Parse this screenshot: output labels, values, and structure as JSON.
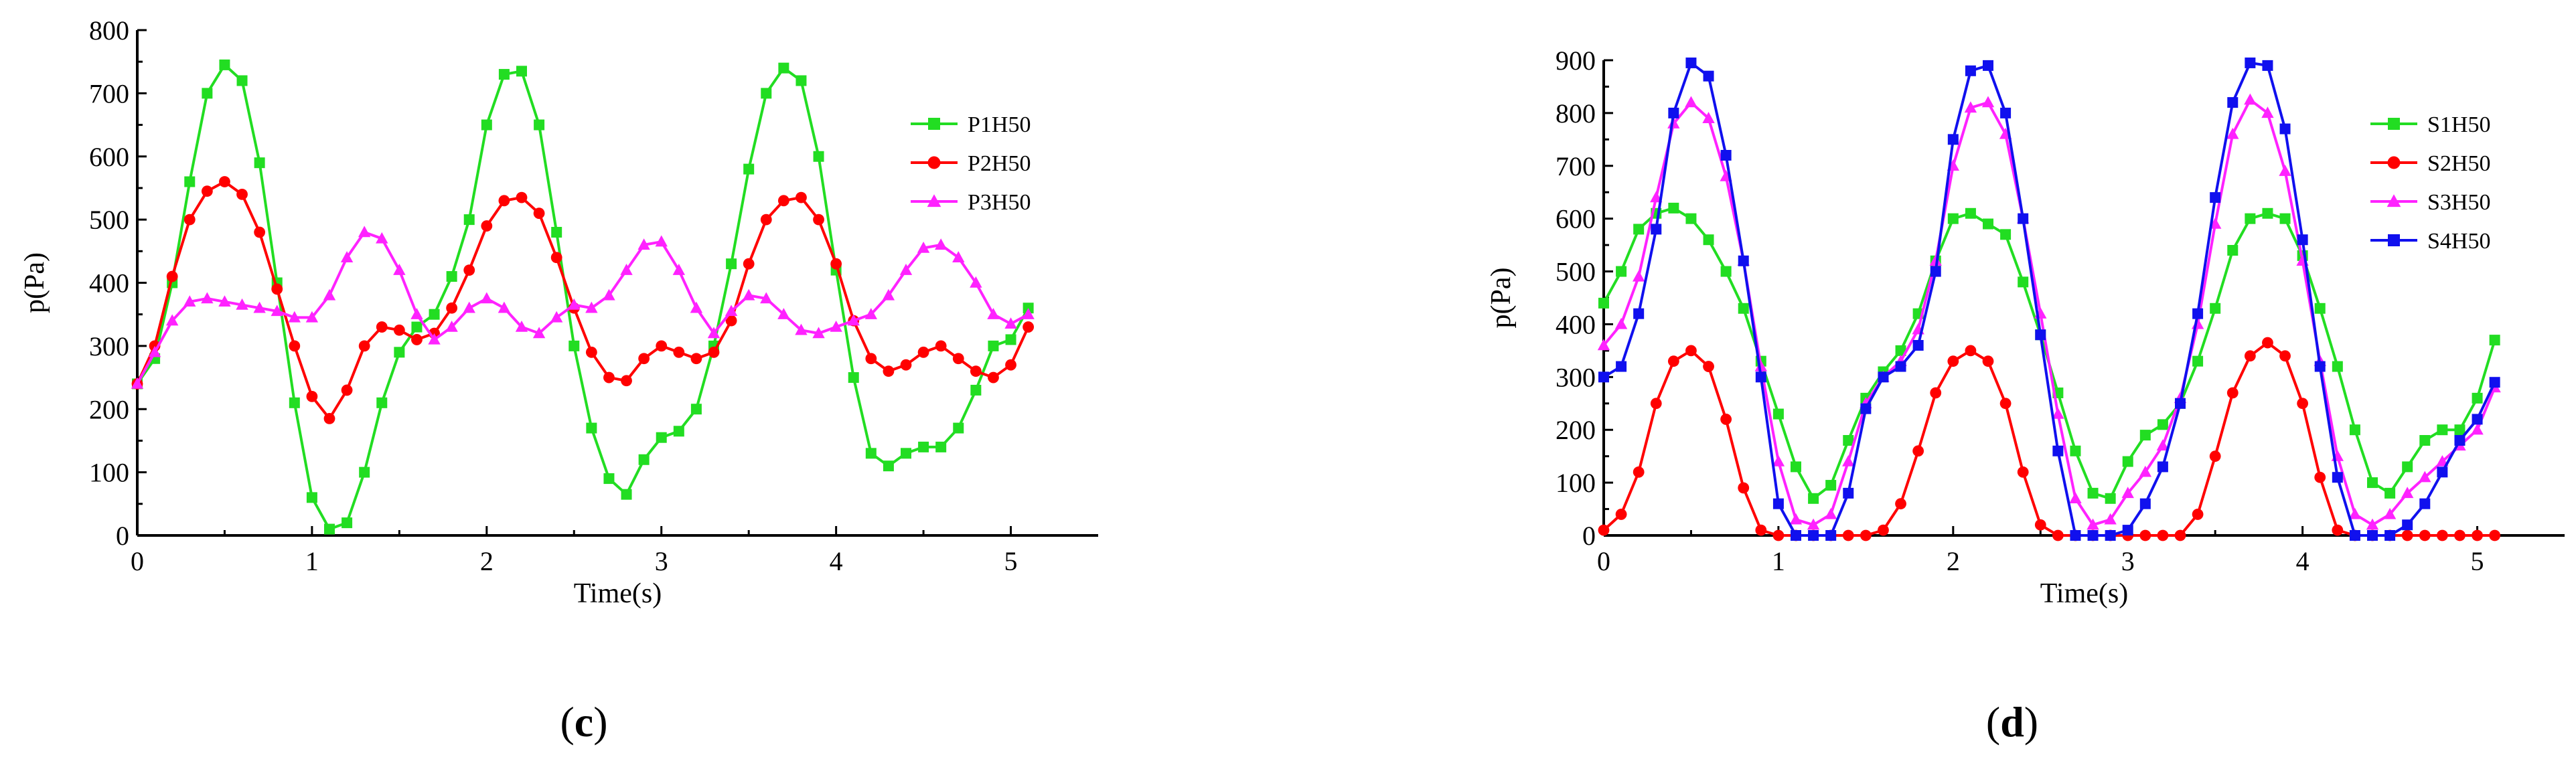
{
  "chart_data": [
    {
      "type": "line",
      "panel_label": "c",
      "xlabel": "Time(s)",
      "ylabel": "p(Pa)",
      "xlim": [
        0,
        5.5
      ],
      "ylim": [
        0,
        800
      ],
      "xticks": [
        0,
        1,
        2,
        3,
        4,
        5
      ],
      "yticks": [
        0,
        100,
        200,
        300,
        400,
        500,
        600,
        700,
        800
      ],
      "legend_placement": "right",
      "series": [
        {
          "name": "P1H50",
          "color": "#22dd22",
          "marker": "square",
          "x": [
            0.0,
            0.1,
            0.2,
            0.3,
            0.4,
            0.5,
            0.6,
            0.7,
            0.8,
            0.9,
            1.0,
            1.1,
            1.2,
            1.3,
            1.4,
            1.5,
            1.6,
            1.7,
            1.8,
            1.9,
            2.0,
            2.1,
            2.2,
            2.3,
            2.4,
            2.5,
            2.6,
            2.7,
            2.8,
            2.9,
            3.0,
            3.1,
            3.2,
            3.3,
            3.4,
            3.5,
            3.6,
            3.7,
            3.8,
            3.9,
            4.0,
            4.1,
            4.2,
            4.3,
            4.4,
            4.5,
            4.6,
            4.7,
            4.8,
            4.9,
            5.0,
            5.1
          ],
          "y": [
            240,
            280,
            400,
            560,
            700,
            745,
            720,
            590,
            400,
            210,
            60,
            10,
            20,
            100,
            210,
            290,
            330,
            350,
            410,
            500,
            650,
            730,
            735,
            650,
            480,
            300,
            170,
            90,
            65,
            120,
            155,
            165,
            200,
            300,
            430,
            580,
            700,
            740,
            720,
            600,
            420,
            250,
            130,
            110,
            130,
            140,
            140,
            170,
            230,
            300,
            310,
            360
          ]
        },
        {
          "name": "P2H50",
          "color": "#ff0000",
          "marker": "circle",
          "x": [
            0.0,
            0.1,
            0.2,
            0.3,
            0.4,
            0.5,
            0.6,
            0.7,
            0.8,
            0.9,
            1.0,
            1.1,
            1.2,
            1.3,
            1.4,
            1.5,
            1.6,
            1.7,
            1.8,
            1.9,
            2.0,
            2.1,
            2.2,
            2.3,
            2.4,
            2.5,
            2.6,
            2.7,
            2.8,
            2.9,
            3.0,
            3.1,
            3.2,
            3.3,
            3.4,
            3.5,
            3.6,
            3.7,
            3.8,
            3.9,
            4.0,
            4.1,
            4.2,
            4.3,
            4.4,
            4.5,
            4.6,
            4.7,
            4.8,
            4.9,
            5.0,
            5.1
          ],
          "y": [
            240,
            300,
            410,
            500,
            545,
            560,
            540,
            480,
            390,
            300,
            220,
            185,
            230,
            300,
            330,
            325,
            310,
            320,
            360,
            420,
            490,
            530,
            535,
            510,
            440,
            360,
            290,
            250,
            245,
            280,
            300,
            290,
            280,
            290,
            340,
            430,
            500,
            530,
            535,
            500,
            430,
            340,
            280,
            260,
            270,
            290,
            300,
            280,
            260,
            250,
            270,
            330
          ]
        },
        {
          "name": "P3H50",
          "color": "#ff22ff",
          "marker": "triangle",
          "x": [
            0.0,
            0.1,
            0.2,
            0.3,
            0.4,
            0.5,
            0.6,
            0.7,
            0.8,
            0.9,
            1.0,
            1.1,
            1.2,
            1.3,
            1.4,
            1.5,
            1.6,
            1.7,
            1.8,
            1.9,
            2.0,
            2.1,
            2.2,
            2.3,
            2.4,
            2.5,
            2.6,
            2.7,
            2.8,
            2.9,
            3.0,
            3.1,
            3.2,
            3.3,
            3.4,
            3.5,
            3.6,
            3.7,
            3.8,
            3.9,
            4.0,
            4.1,
            4.2,
            4.3,
            4.4,
            4.5,
            4.6,
            4.7,
            4.8,
            4.9,
            5.0,
            5.1
          ],
          "y": [
            240,
            290,
            340,
            370,
            375,
            370,
            365,
            360,
            355,
            345,
            345,
            380,
            440,
            480,
            470,
            420,
            350,
            310,
            330,
            360,
            375,
            360,
            330,
            320,
            345,
            365,
            360,
            380,
            420,
            460,
            465,
            420,
            360,
            320,
            355,
            380,
            375,
            350,
            325,
            320,
            330,
            340,
            350,
            380,
            420,
            455,
            460,
            440,
            400,
            350,
            335,
            350
          ]
        }
      ]
    },
    {
      "type": "line",
      "panel_label": "d",
      "xlabel": "Time(s)",
      "ylabel": "p(Pa)",
      "xlim": [
        0,
        5.5
      ],
      "ylim": [
        0,
        900
      ],
      "xticks": [
        0,
        1,
        2,
        3,
        4,
        5
      ],
      "yticks": [
        0,
        100,
        200,
        300,
        400,
        500,
        600,
        700,
        800,
        900
      ],
      "legend_placement": "right",
      "series": [
        {
          "name": "S1H50",
          "color": "#22dd22",
          "marker": "square",
          "x": [
            0.0,
            0.1,
            0.2,
            0.3,
            0.4,
            0.5,
            0.6,
            0.7,
            0.8,
            0.9,
            1.0,
            1.1,
            1.2,
            1.3,
            1.4,
            1.5,
            1.6,
            1.7,
            1.8,
            1.9,
            2.0,
            2.1,
            2.2,
            2.3,
            2.4,
            2.5,
            2.6,
            2.7,
            2.8,
            2.9,
            3.0,
            3.1,
            3.2,
            3.3,
            3.4,
            3.5,
            3.6,
            3.7,
            3.8,
            3.9,
            4.0,
            4.1,
            4.2,
            4.3,
            4.4,
            4.5,
            4.6,
            4.7,
            4.8,
            4.9,
            5.0,
            5.1
          ],
          "y": [
            440,
            500,
            580,
            610,
            620,
            600,
            560,
            500,
            430,
            330,
            230,
            130,
            70,
            95,
            180,
            260,
            310,
            350,
            420,
            520,
            600,
            610,
            590,
            570,
            480,
            380,
            270,
            160,
            80,
            70,
            140,
            190,
            210,
            250,
            330,
            430,
            540,
            600,
            610,
            600,
            530,
            430,
            320,
            200,
            100,
            80,
            130,
            180,
            200,
            200,
            260,
            370
          ]
        },
        {
          "name": "S2H50",
          "color": "#ff0000",
          "marker": "circle",
          "x": [
            0.0,
            0.1,
            0.2,
            0.3,
            0.4,
            0.5,
            0.6,
            0.7,
            0.8,
            0.9,
            1.0,
            1.1,
            1.2,
            1.3,
            1.4,
            1.5,
            1.6,
            1.7,
            1.8,
            1.9,
            2.0,
            2.1,
            2.2,
            2.3,
            2.4,
            2.5,
            2.6,
            2.7,
            2.8,
            2.9,
            3.0,
            3.1,
            3.2,
            3.3,
            3.4,
            3.5,
            3.6,
            3.7,
            3.8,
            3.9,
            4.0,
            4.1,
            4.2,
            4.3,
            4.4,
            4.5,
            4.6,
            4.7,
            4.8,
            4.9,
            5.0,
            5.1
          ],
          "y": [
            10,
            40,
            120,
            250,
            330,
            350,
            320,
            220,
            90,
            10,
            0,
            0,
            0,
            0,
            0,
            0,
            10,
            60,
            160,
            270,
            330,
            350,
            330,
            250,
            120,
            20,
            0,
            0,
            0,
            0,
            0,
            0,
            0,
            0,
            40,
            150,
            270,
            340,
            365,
            340,
            250,
            110,
            10,
            0,
            0,
            0,
            0,
            0,
            0,
            0,
            0,
            0
          ]
        },
        {
          "name": "S3H50",
          "color": "#ff22ff",
          "marker": "triangle",
          "x": [
            0.0,
            0.1,
            0.2,
            0.3,
            0.4,
            0.5,
            0.6,
            0.7,
            0.8,
            0.9,
            1.0,
            1.1,
            1.2,
            1.3,
            1.4,
            1.5,
            1.6,
            1.7,
            1.8,
            1.9,
            2.0,
            2.1,
            2.2,
            2.3,
            2.4,
            2.5,
            2.6,
            2.7,
            2.8,
            2.9,
            3.0,
            3.1,
            3.2,
            3.3,
            3.4,
            3.5,
            3.6,
            3.7,
            3.8,
            3.9,
            4.0,
            4.1,
            4.2,
            4.3,
            4.4,
            4.5,
            4.6,
            4.7,
            4.8,
            4.9,
            5.0,
            5.1
          ],
          "y": [
            360,
            400,
            490,
            640,
            780,
            820,
            790,
            680,
            520,
            320,
            140,
            30,
            20,
            40,
            140,
            250,
            300,
            330,
            390,
            520,
            700,
            810,
            820,
            760,
            600,
            420,
            230,
            70,
            20,
            30,
            80,
            120,
            170,
            260,
            400,
            590,
            760,
            825,
            800,
            690,
            520,
            330,
            150,
            40,
            20,
            40,
            80,
            110,
            140,
            170,
            200,
            280
          ]
        },
        {
          "name": "S4H50",
          "color": "#1010ee",
          "marker": "square",
          "x": [
            0.0,
            0.1,
            0.2,
            0.3,
            0.4,
            0.5,
            0.6,
            0.7,
            0.8,
            0.9,
            1.0,
            1.1,
            1.2,
            1.3,
            1.4,
            1.5,
            1.6,
            1.7,
            1.8,
            1.9,
            2.0,
            2.1,
            2.2,
            2.3,
            2.4,
            2.5,
            2.6,
            2.7,
            2.8,
            2.9,
            3.0,
            3.1,
            3.2,
            3.3,
            3.4,
            3.5,
            3.6,
            3.7,
            3.8,
            3.9,
            4.0,
            4.1,
            4.2,
            4.3,
            4.4,
            4.5,
            4.6,
            4.7,
            4.8,
            4.9,
            5.0,
            5.1
          ],
          "y": [
            300,
            320,
            420,
            580,
            800,
            895,
            870,
            720,
            520,
            300,
            60,
            0,
            0,
            0,
            80,
            240,
            300,
            320,
            360,
            500,
            750,
            880,
            890,
            800,
            600,
            380,
            160,
            0,
            0,
            0,
            10,
            60,
            130,
            250,
            420,
            640,
            820,
            895,
            890,
            770,
            560,
            320,
            110,
            0,
            0,
            0,
            20,
            60,
            120,
            180,
            220,
            290
          ]
        }
      ]
    }
  ]
}
